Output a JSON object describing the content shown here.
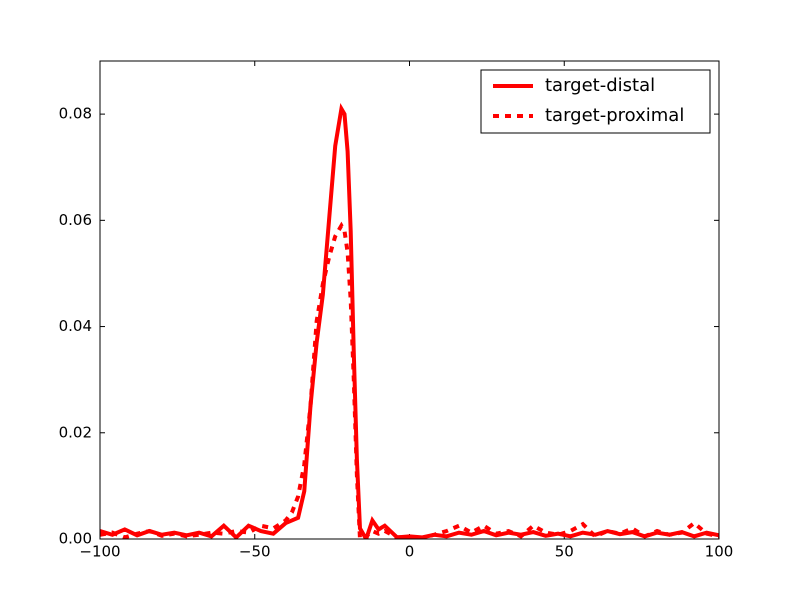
{
  "chart_data": {
    "type": "line",
    "x": [
      -100,
      -96,
      -92,
      -88,
      -84,
      -80,
      -76,
      -72,
      -68,
      -64,
      -60,
      -56,
      -52,
      -48,
      -44,
      -40,
      -38,
      -36,
      -34,
      -32,
      -30,
      -28,
      -26,
      -24,
      -22,
      -21,
      -20,
      -19,
      -18,
      -17,
      -16,
      -14,
      -12,
      -10,
      -8,
      -4,
      0,
      4,
      8,
      12,
      16,
      20,
      24,
      28,
      32,
      36,
      40,
      44,
      48,
      52,
      56,
      60,
      64,
      68,
      72,
      76,
      80,
      84,
      88,
      92,
      96,
      100
    ],
    "series": [
      {
        "name": "target-distal",
        "color": "#ff0000",
        "style": "solid",
        "values": [
          0.0015,
          0.0008,
          0.0018,
          0.0007,
          0.0015,
          0.0008,
          0.0012,
          0.0007,
          0.0012,
          0.0005,
          0.0025,
          0.0003,
          0.0025,
          0.0015,
          0.001,
          0.003,
          0.0035,
          0.004,
          0.009,
          0.025,
          0.037,
          0.046,
          0.06,
          0.074,
          0.081,
          0.08,
          0.073,
          0.058,
          0.035,
          0.015,
          0.002,
          0.0,
          0.0035,
          0.0018,
          0.0025,
          0.0003,
          0.0005,
          0.0003,
          0.0008,
          0.0005,
          0.0012,
          0.0008,
          0.0015,
          0.0007,
          0.0012,
          0.0008,
          0.0013,
          0.0006,
          0.001,
          0.0005,
          0.0012,
          0.0008,
          0.0015,
          0.0009,
          0.0013,
          0.0005,
          0.0012,
          0.0008,
          0.0013,
          0.0005,
          0.0012,
          0.0007
        ]
      },
      {
        "name": "target-proximal",
        "color": "#ff0000",
        "style": "dashed",
        "values": [
          0.0008,
          0.0012,
          0.0003,
          0.001,
          0.0015,
          0.0006,
          0.001,
          0.0005,
          0.0008,
          0.0012,
          0.001,
          0.0015,
          0.0012,
          0.0025,
          0.002,
          0.0035,
          0.005,
          0.008,
          0.014,
          0.025,
          0.041,
          0.048,
          0.053,
          0.057,
          0.059,
          0.058,
          0.054,
          0.045,
          0.03,
          0.012,
          0.0,
          0.0005,
          0.0015,
          0.001,
          0.0015,
          0.0003,
          0.0004,
          0.0002,
          0.0008,
          0.0015,
          0.0025,
          0.0012,
          0.0025,
          0.001,
          0.0015,
          0.0005,
          0.0025,
          0.0012,
          0.0008,
          0.0015,
          0.0028,
          0.0005,
          0.0015,
          0.001,
          0.002,
          0.0005,
          0.0015,
          0.0008,
          0.0012,
          0.003,
          0.001,
          0.0005
        ]
      }
    ],
    "xlim": [
      -100,
      100
    ],
    "xticks": [
      {
        "value": -100,
        "label": "−100"
      },
      {
        "value": -50,
        "label": "−50"
      },
      0,
      50,
      100
    ],
    "ylim": [
      0,
      0.09
    ],
    "yticks": [
      {
        "value": 0,
        "label": "0.00"
      },
      0.02,
      0.04,
      0.06,
      0.08
    ],
    "legend": "upper right",
    "grid": false
  }
}
